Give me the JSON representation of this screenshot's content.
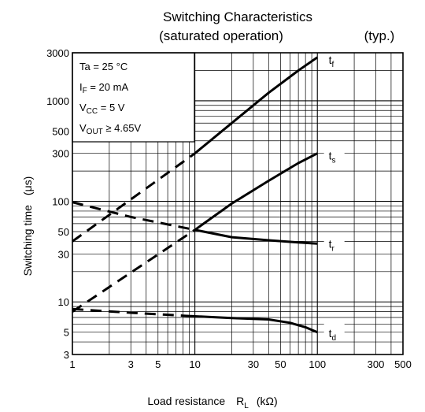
{
  "chart_data": {
    "type": "line",
    "title": "Switching Characteristics",
    "subtitle": "(saturated operation)",
    "subtitle_right": "(typ.)",
    "xlabel": "Load resistance",
    "xlabel_symbol": "R",
    "xlabel_symbol_sub": "L",
    "xlabel_unit": "(kΩ)",
    "ylabel": "Switching time",
    "ylabel_unit": "(μs)",
    "x_scale": "log",
    "y_scale": "log",
    "xlim": [
      1,
      500
    ],
    "ylim": [
      3,
      3000
    ],
    "x_ticks": [
      1,
      3,
      5,
      10,
      30,
      50,
      100,
      300,
      500
    ],
    "x_tick_labels": [
      "1",
      "3",
      "5",
      "10",
      "30",
      "50",
      "100",
      "300",
      "500"
    ],
    "y_ticks": [
      3,
      5,
      10,
      30,
      50,
      100,
      300,
      500,
      1000,
      3000
    ],
    "y_tick_labels": [
      "3",
      "5",
      "10",
      "30",
      "50",
      "100",
      "300",
      "500",
      "1000",
      "3000"
    ],
    "grid": true,
    "conditions": {
      "ta": "Ta = 25 °C",
      "if_main": "I",
      "if_sub": "F",
      "if_rest": " = 20 mA",
      "vcc_main": "V",
      "vcc_sub": "CC",
      "vcc_rest": " = 5 V",
      "vout_main": "V",
      "vout_sub": "OUT",
      "vout_rest": " ≥ 4.65V"
    },
    "series": [
      {
        "label_main": "t",
        "label_sub": "f",
        "color": "#000000",
        "dashed": {
          "x": [
            1,
            10
          ],
          "y": [
            40,
            300
          ]
        },
        "solid": {
          "x": [
            10,
            20,
            40,
            70,
            100
          ],
          "y": [
            300,
            600,
            1200,
            2000,
            2700
          ]
        },
        "label_at": [
          110,
          2500
        ]
      },
      {
        "label_main": "t",
        "label_sub": "s",
        "color": "#000000",
        "dashed": {
          "x": [
            1,
            10
          ],
          "y": [
            8,
            52
          ]
        },
        "solid": {
          "x": [
            10,
            20,
            40,
            70,
            100
          ],
          "y": [
            52,
            95,
            160,
            240,
            300
          ]
        },
        "label_at": [
          110,
          280
        ]
      },
      {
        "label_main": "t",
        "label_sub": "r",
        "color": "#000000",
        "dashed": {
          "x": [
            1,
            3,
            10
          ],
          "y": [
            98,
            70,
            52
          ]
        },
        "solid": {
          "x": [
            10,
            20,
            40,
            70,
            100
          ],
          "y": [
            52,
            44,
            41,
            39,
            38
          ]
        },
        "label_at": [
          110,
          37
        ]
      },
      {
        "label_main": "t",
        "label_sub": "d",
        "color": "#000000",
        "dashed": {
          "x": [
            1,
            3,
            8
          ],
          "y": [
            8.5,
            7.8,
            7.3
          ]
        },
        "solid": {
          "x": [
            8,
            20,
            40,
            60,
            80,
            100
          ],
          "y": [
            7.3,
            6.9,
            6.7,
            6.2,
            5.6,
            5.0
          ]
        },
        "label_at": [
          110,
          4.8
        ]
      }
    ]
  }
}
